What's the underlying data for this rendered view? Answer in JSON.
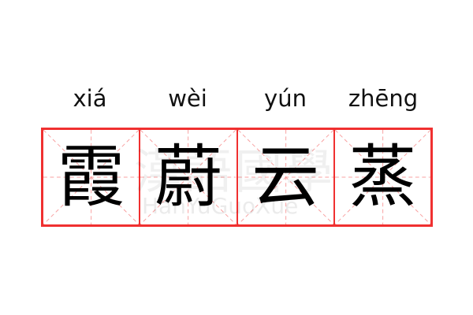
{
  "phrase": [
    {
      "pinyin": "xiá",
      "char": "霞"
    },
    {
      "pinyin": "wèi",
      "char": "蔚"
    },
    {
      "pinyin": "yún",
      "char": "云"
    },
    {
      "pinyin": "zhēng",
      "char": "蒸"
    }
  ],
  "watermark": {
    "chinese": "漢語國學",
    "latin": "HanYuGuoXue"
  },
  "colors": {
    "grid": "#f03030",
    "guide": "#f8a0a0"
  }
}
